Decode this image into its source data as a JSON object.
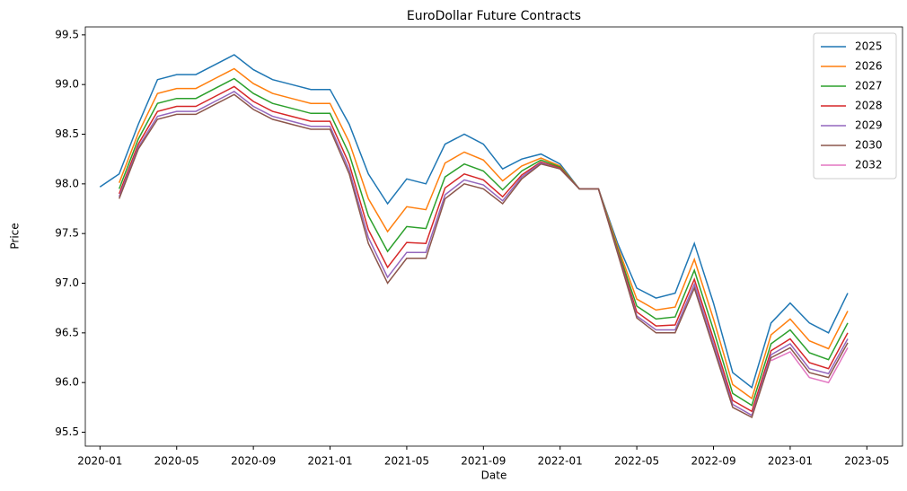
{
  "chart_data": {
    "type": "line",
    "title": "EuroDollar Future Contracts",
    "x_label": "Date",
    "y_label": "Price",
    "x": [
      "2020-01",
      "2020-02",
      "2020-03",
      "2020-04",
      "2020-05",
      "2020-06",
      "2020-07",
      "2020-08",
      "2020-09",
      "2020-10",
      "2020-11",
      "2020-12",
      "2021-01",
      "2021-02",
      "2021-03",
      "2021-04",
      "2021-05",
      "2021-06",
      "2021-07",
      "2021-08",
      "2021-09",
      "2021-10",
      "2021-11",
      "2021-12",
      "2022-01",
      "2022-02",
      "2022-03",
      "2022-04",
      "2022-05",
      "2022-06",
      "2022-07",
      "2022-08",
      "2022-09",
      "2022-10",
      "2022-11",
      "2022-12",
      "2023-01",
      "2023-02",
      "2023-03",
      "2023-04"
    ],
    "xlim": [
      "2019-12",
      "2023-07"
    ],
    "xticks": [
      "2020-01",
      "2020-05",
      "2020-09",
      "2021-01",
      "2021-05",
      "2021-09",
      "2022-01",
      "2022-05",
      "2022-09",
      "2023-01",
      "2023-05"
    ],
    "ylim": [
      95.36,
      99.58
    ],
    "yticks": [
      95.5,
      {
        "value": 96,
        "label": "96.0"
      },
      96.5,
      {
        "value": 97,
        "label": "97.0"
      },
      97.5,
      {
        "value": 98,
        "label": "98.0"
      },
      98.5,
      {
        "value": 99,
        "label": "99.0"
      },
      99.5
    ],
    "legend": "upper right",
    "series": [
      {
        "name": "2025",
        "color": "#1f77b4",
        "values": [
          97.97,
          98.1,
          98.6,
          99.05,
          99.1,
          99.1,
          99.2,
          99.3,
          99.15,
          99.05,
          99.0,
          98.95,
          98.95,
          98.6,
          98.1,
          97.8,
          98.05,
          98.0,
          98.4,
          98.5,
          98.4,
          98.15,
          98.25,
          98.3,
          98.2,
          97.95,
          97.95,
          97.4,
          96.95,
          96.85,
          96.9,
          97.4,
          96.8,
          96.1,
          95.95,
          96.6,
          96.8,
          96.6,
          96.5,
          96.9
        ]
      },
      {
        "name": "2026",
        "color": "#ff7f0e",
        "values": [
          null,
          98.01,
          98.51,
          98.91,
          98.96,
          98.96,
          99.06,
          99.16,
          99.01,
          98.91,
          98.86,
          98.81,
          98.81,
          98.42,
          97.85,
          97.52,
          97.77,
          97.74,
          98.21,
          98.32,
          98.24,
          98.03,
          98.18,
          98.26,
          98.18,
          97.95,
          97.95,
          97.37,
          96.84,
          96.73,
          96.76,
          97.24,
          96.64,
          95.98,
          95.84,
          96.48,
          96.64,
          96.42,
          96.34,
          96.72
        ]
      },
      {
        "name": "2027",
        "color": "#2ca02c",
        "values": [
          null,
          97.95,
          98.45,
          98.81,
          98.86,
          98.86,
          98.96,
          99.06,
          98.91,
          98.81,
          98.76,
          98.71,
          98.71,
          98.3,
          97.68,
          97.32,
          97.57,
          97.55,
          98.07,
          98.2,
          98.13,
          97.94,
          98.13,
          98.24,
          98.17,
          97.95,
          97.95,
          97.34,
          96.77,
          96.64,
          96.66,
          97.13,
          96.53,
          95.89,
          95.77,
          96.39,
          96.53,
          96.3,
          96.23,
          96.6
        ]
      },
      {
        "name": "2028",
        "color": "#d62728",
        "values": [
          null,
          97.9,
          98.4,
          98.73,
          98.78,
          98.78,
          98.88,
          98.98,
          98.83,
          98.73,
          98.68,
          98.63,
          98.63,
          98.2,
          97.54,
          97.16,
          97.41,
          97.4,
          97.96,
          98.1,
          98.04,
          97.87,
          98.09,
          98.22,
          98.16,
          97.95,
          97.95,
          97.32,
          96.71,
          96.57,
          96.58,
          97.04,
          96.44,
          95.82,
          95.71,
          96.32,
          96.44,
          96.2,
          96.14,
          96.5
        ]
      },
      {
        "name": "2029",
        "color": "#9467bd",
        "values": [
          null,
          97.87,
          98.37,
          98.68,
          98.73,
          98.73,
          98.83,
          98.93,
          98.78,
          98.68,
          98.63,
          98.58,
          98.58,
          98.14,
          97.46,
          97.06,
          97.31,
          97.31,
          97.89,
          98.04,
          97.99,
          97.83,
          98.07,
          98.21,
          98.15,
          97.95,
          97.95,
          97.31,
          96.67,
          96.53,
          96.53,
          96.99,
          96.39,
          95.78,
          95.67,
          96.28,
          96.39,
          96.14,
          96.09,
          96.44
        ]
      },
      {
        "name": "2030",
        "color": "#8c564b",
        "values": [
          null,
          97.85,
          98.35,
          98.65,
          98.7,
          98.7,
          98.8,
          98.9,
          98.75,
          98.65,
          98.6,
          98.55,
          98.55,
          98.1,
          97.4,
          97.0,
          97.25,
          97.25,
          97.85,
          98.0,
          97.95,
          97.8,
          98.05,
          98.2,
          98.15,
          97.95,
          97.95,
          97.3,
          96.65,
          96.5,
          96.5,
          96.95,
          96.35,
          95.75,
          95.65,
          96.25,
          96.35,
          96.1,
          96.05,
          96.4
        ]
      },
      {
        "name": "2032",
        "color": "#e377c2",
        "values": [
          null,
          null,
          null,
          null,
          null,
          null,
          null,
          null,
          null,
          null,
          null,
          null,
          null,
          null,
          null,
          null,
          null,
          null,
          null,
          null,
          null,
          null,
          null,
          null,
          null,
          null,
          null,
          null,
          null,
          null,
          null,
          null,
          null,
          null,
          null,
          96.22,
          96.31,
          96.05,
          96.0,
          96.35
        ]
      }
    ]
  }
}
